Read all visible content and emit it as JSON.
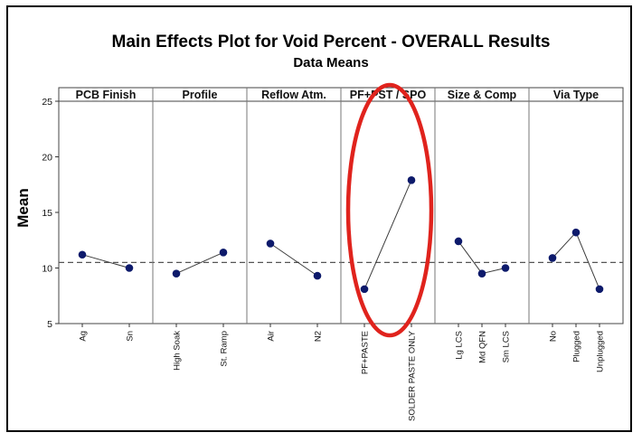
{
  "chart_data": {
    "type": "line",
    "title": "Main Effects Plot for Void Percent - OVERALL Results",
    "subtitle": "Data Means",
    "ylabel": "Mean",
    "ylim": [
      5,
      25
    ],
    "yticks": [
      5,
      10,
      15,
      20,
      25
    ],
    "reference_mean": 10.5,
    "grid": false,
    "colors": {
      "marker": "#0d1a6b",
      "line": "#3c3c3c",
      "highlight": "#e0231d",
      "reference": "#555555"
    },
    "panels": [
      {
        "label": "PCB Finish",
        "categories": [
          "Ag",
          "Sn"
        ],
        "values": [
          11.2,
          10.0
        ]
      },
      {
        "label": "Profile",
        "categories": [
          "High Soak",
          "St. Ramp"
        ],
        "values": [
          9.5,
          11.4
        ]
      },
      {
        "label": "Reflow Atm.",
        "categories": [
          "Air",
          "N2"
        ],
        "values": [
          12.2,
          9.3
        ]
      },
      {
        "label": "PF+PST / SPO",
        "categories": [
          "PF+PASTE",
          "SOLDER PASTE ONLY"
        ],
        "values": [
          8.1,
          17.9
        ],
        "highlighted": true
      },
      {
        "label": "Size & Comp",
        "categories": [
          "Lg LCS",
          "Md QFN",
          "Sm LCS"
        ],
        "values": [
          12.4,
          9.5,
          10.0
        ]
      },
      {
        "label": "Via Type",
        "categories": [
          "No",
          "Plugged",
          "Unplugged"
        ],
        "values": [
          10.9,
          13.2,
          8.1
        ]
      }
    ]
  }
}
